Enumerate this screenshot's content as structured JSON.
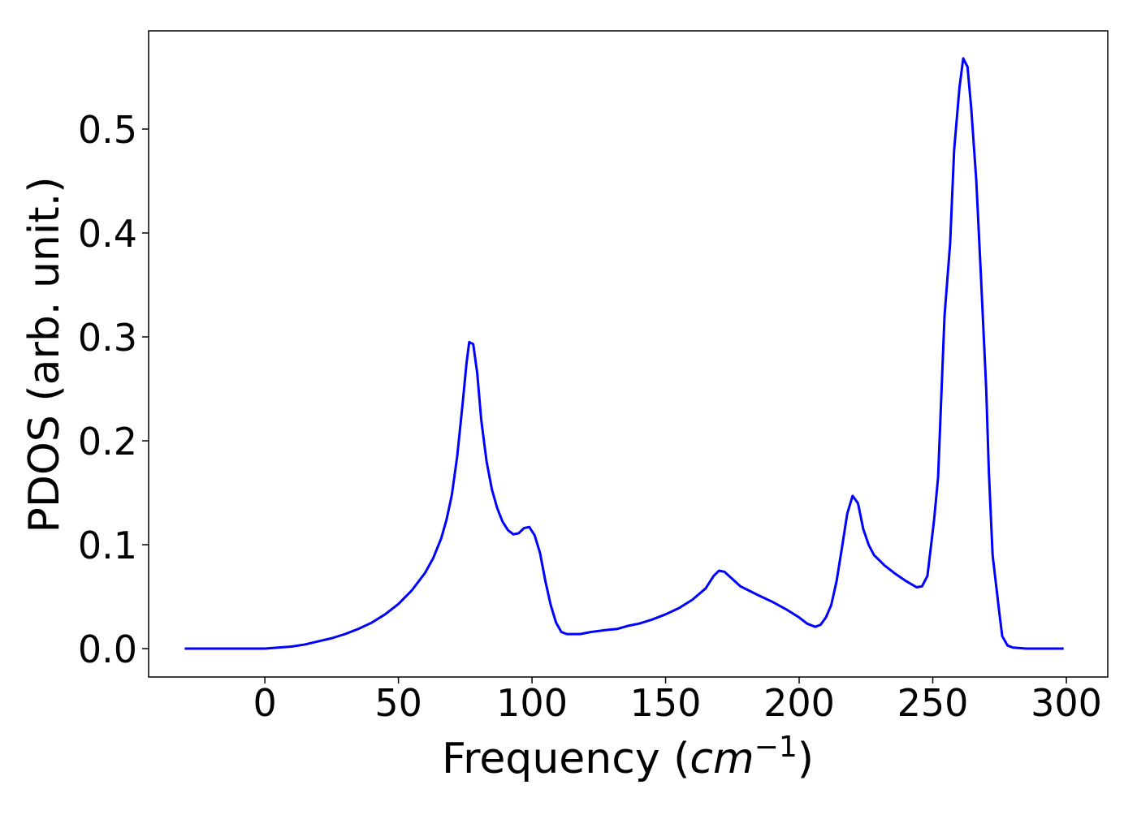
{
  "chart_data": {
    "type": "line",
    "xlabel": [
      "Frequency (",
      "cm",
      "−1",
      ")"
    ],
    "ylabel": "PDOS (arb. unit.)",
    "x": [
      -30,
      -20,
      -10,
      0,
      5,
      10,
      15,
      20,
      25,
      30,
      35,
      40,
      45,
      50,
      55,
      60,
      63,
      66,
      68,
      70,
      72,
      74,
      75.5,
      76.5,
      78,
      79.5,
      81,
      83,
      85,
      87,
      89,
      91,
      93,
      95,
      97,
      99,
      101,
      103,
      105,
      107,
      109,
      111,
      113,
      118,
      122,
      128,
      132,
      136,
      140,
      145,
      150,
      155,
      160,
      165,
      168,
      170,
      172,
      175,
      178,
      185,
      190,
      195,
      200,
      203,
      206,
      208,
      210,
      212,
      214,
      216,
      218,
      220,
      222,
      224,
      226,
      228,
      232,
      236,
      240,
      244,
      246,
      248,
      250.5,
      252,
      253,
      254.4,
      256.5,
      258,
      260,
      261.4,
      263,
      264.4,
      266.3,
      268,
      270,
      271,
      272.4,
      274.8,
      276,
      278,
      280,
      285,
      299
    ],
    "series": [
      {
        "name": "PDOS",
        "color": "#0000ff",
        "values": [
          0,
          0,
          0,
          0,
          0.001,
          0.002,
          0.004,
          0.007,
          0.01,
          0.014,
          0.019,
          0.025,
          0.033,
          0.043,
          0.056,
          0.073,
          0.087,
          0.106,
          0.124,
          0.148,
          0.185,
          0.235,
          0.275,
          0.295,
          0.293,
          0.265,
          0.22,
          0.18,
          0.153,
          0.135,
          0.122,
          0.114,
          0.11,
          0.111,
          0.116,
          0.117,
          0.109,
          0.092,
          0.065,
          0.042,
          0.025,
          0.016,
          0.014,
          0.014,
          0.016,
          0.018,
          0.019,
          0.022,
          0.024,
          0.028,
          0.033,
          0.039,
          0.047,
          0.058,
          0.07,
          0.075,
          0.074,
          0.067,
          0.06,
          0.051,
          0.045,
          0.038,
          0.03,
          0.024,
          0.021,
          0.023,
          0.03,
          0.042,
          0.065,
          0.097,
          0.13,
          0.147,
          0.14,
          0.115,
          0.1,
          0.09,
          0.08,
          0.072,
          0.065,
          0.059,
          0.06,
          0.07,
          0.124,
          0.165,
          0.23,
          0.32,
          0.39,
          0.48,
          0.54,
          0.568,
          0.56,
          0.52,
          0.45,
          0.36,
          0.25,
          0.17,
          0.09,
          0.037,
          0.012,
          0.003,
          0.001,
          0,
          0
        ]
      }
    ],
    "xlim": [
      -43.5,
      315.5
    ],
    "ylim": [
      -0.0273,
      0.5945
    ],
    "xticks": [
      0,
      50,
      100,
      150,
      200,
      250,
      300
    ],
    "yticks": [
      {
        "value": 0,
        "label": "0.0"
      },
      {
        "value": 0.1,
        "label": "0.1"
      },
      {
        "value": 0.2,
        "label": "0.2"
      },
      {
        "value": 0.3,
        "label": "0.3"
      },
      {
        "value": 0.4,
        "label": "0.4"
      },
      {
        "value": 0.5,
        "label": "0.5"
      }
    ]
  }
}
